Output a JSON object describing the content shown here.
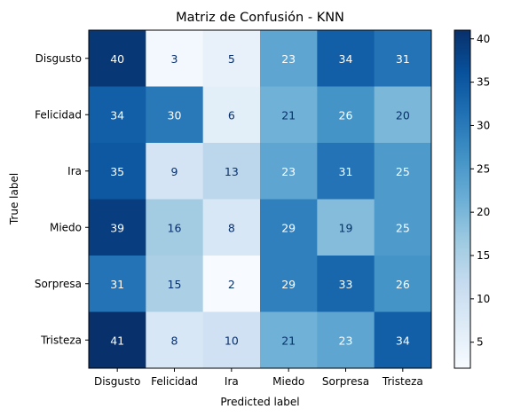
{
  "chart_data": {
    "type": "heatmap",
    "title": "Matriz de Confusión - KNN",
    "xlabel": "Predicted label",
    "ylabel": "True label",
    "x_categories": [
      "Disgusto",
      "Felicidad",
      "Ira",
      "Miedo",
      "Sorpresa",
      "Tristeza"
    ],
    "y_categories": [
      "Disgusto",
      "Felicidad",
      "Ira",
      "Miedo",
      "Sorpresa",
      "Tristeza"
    ],
    "values": [
      [
        40,
        3,
        5,
        23,
        34,
        31
      ],
      [
        34,
        30,
        6,
        21,
        26,
        20
      ],
      [
        35,
        9,
        13,
        23,
        31,
        25
      ],
      [
        39,
        16,
        8,
        29,
        19,
        25
      ],
      [
        31,
        15,
        2,
        29,
        33,
        26
      ],
      [
        41,
        8,
        10,
        21,
        23,
        34
      ]
    ],
    "colormap": "Blues",
    "color_range": [
      2,
      41
    ],
    "colorbar_ticks": [
      5,
      10,
      15,
      20,
      25,
      30,
      35,
      40
    ],
    "grid": false
  }
}
